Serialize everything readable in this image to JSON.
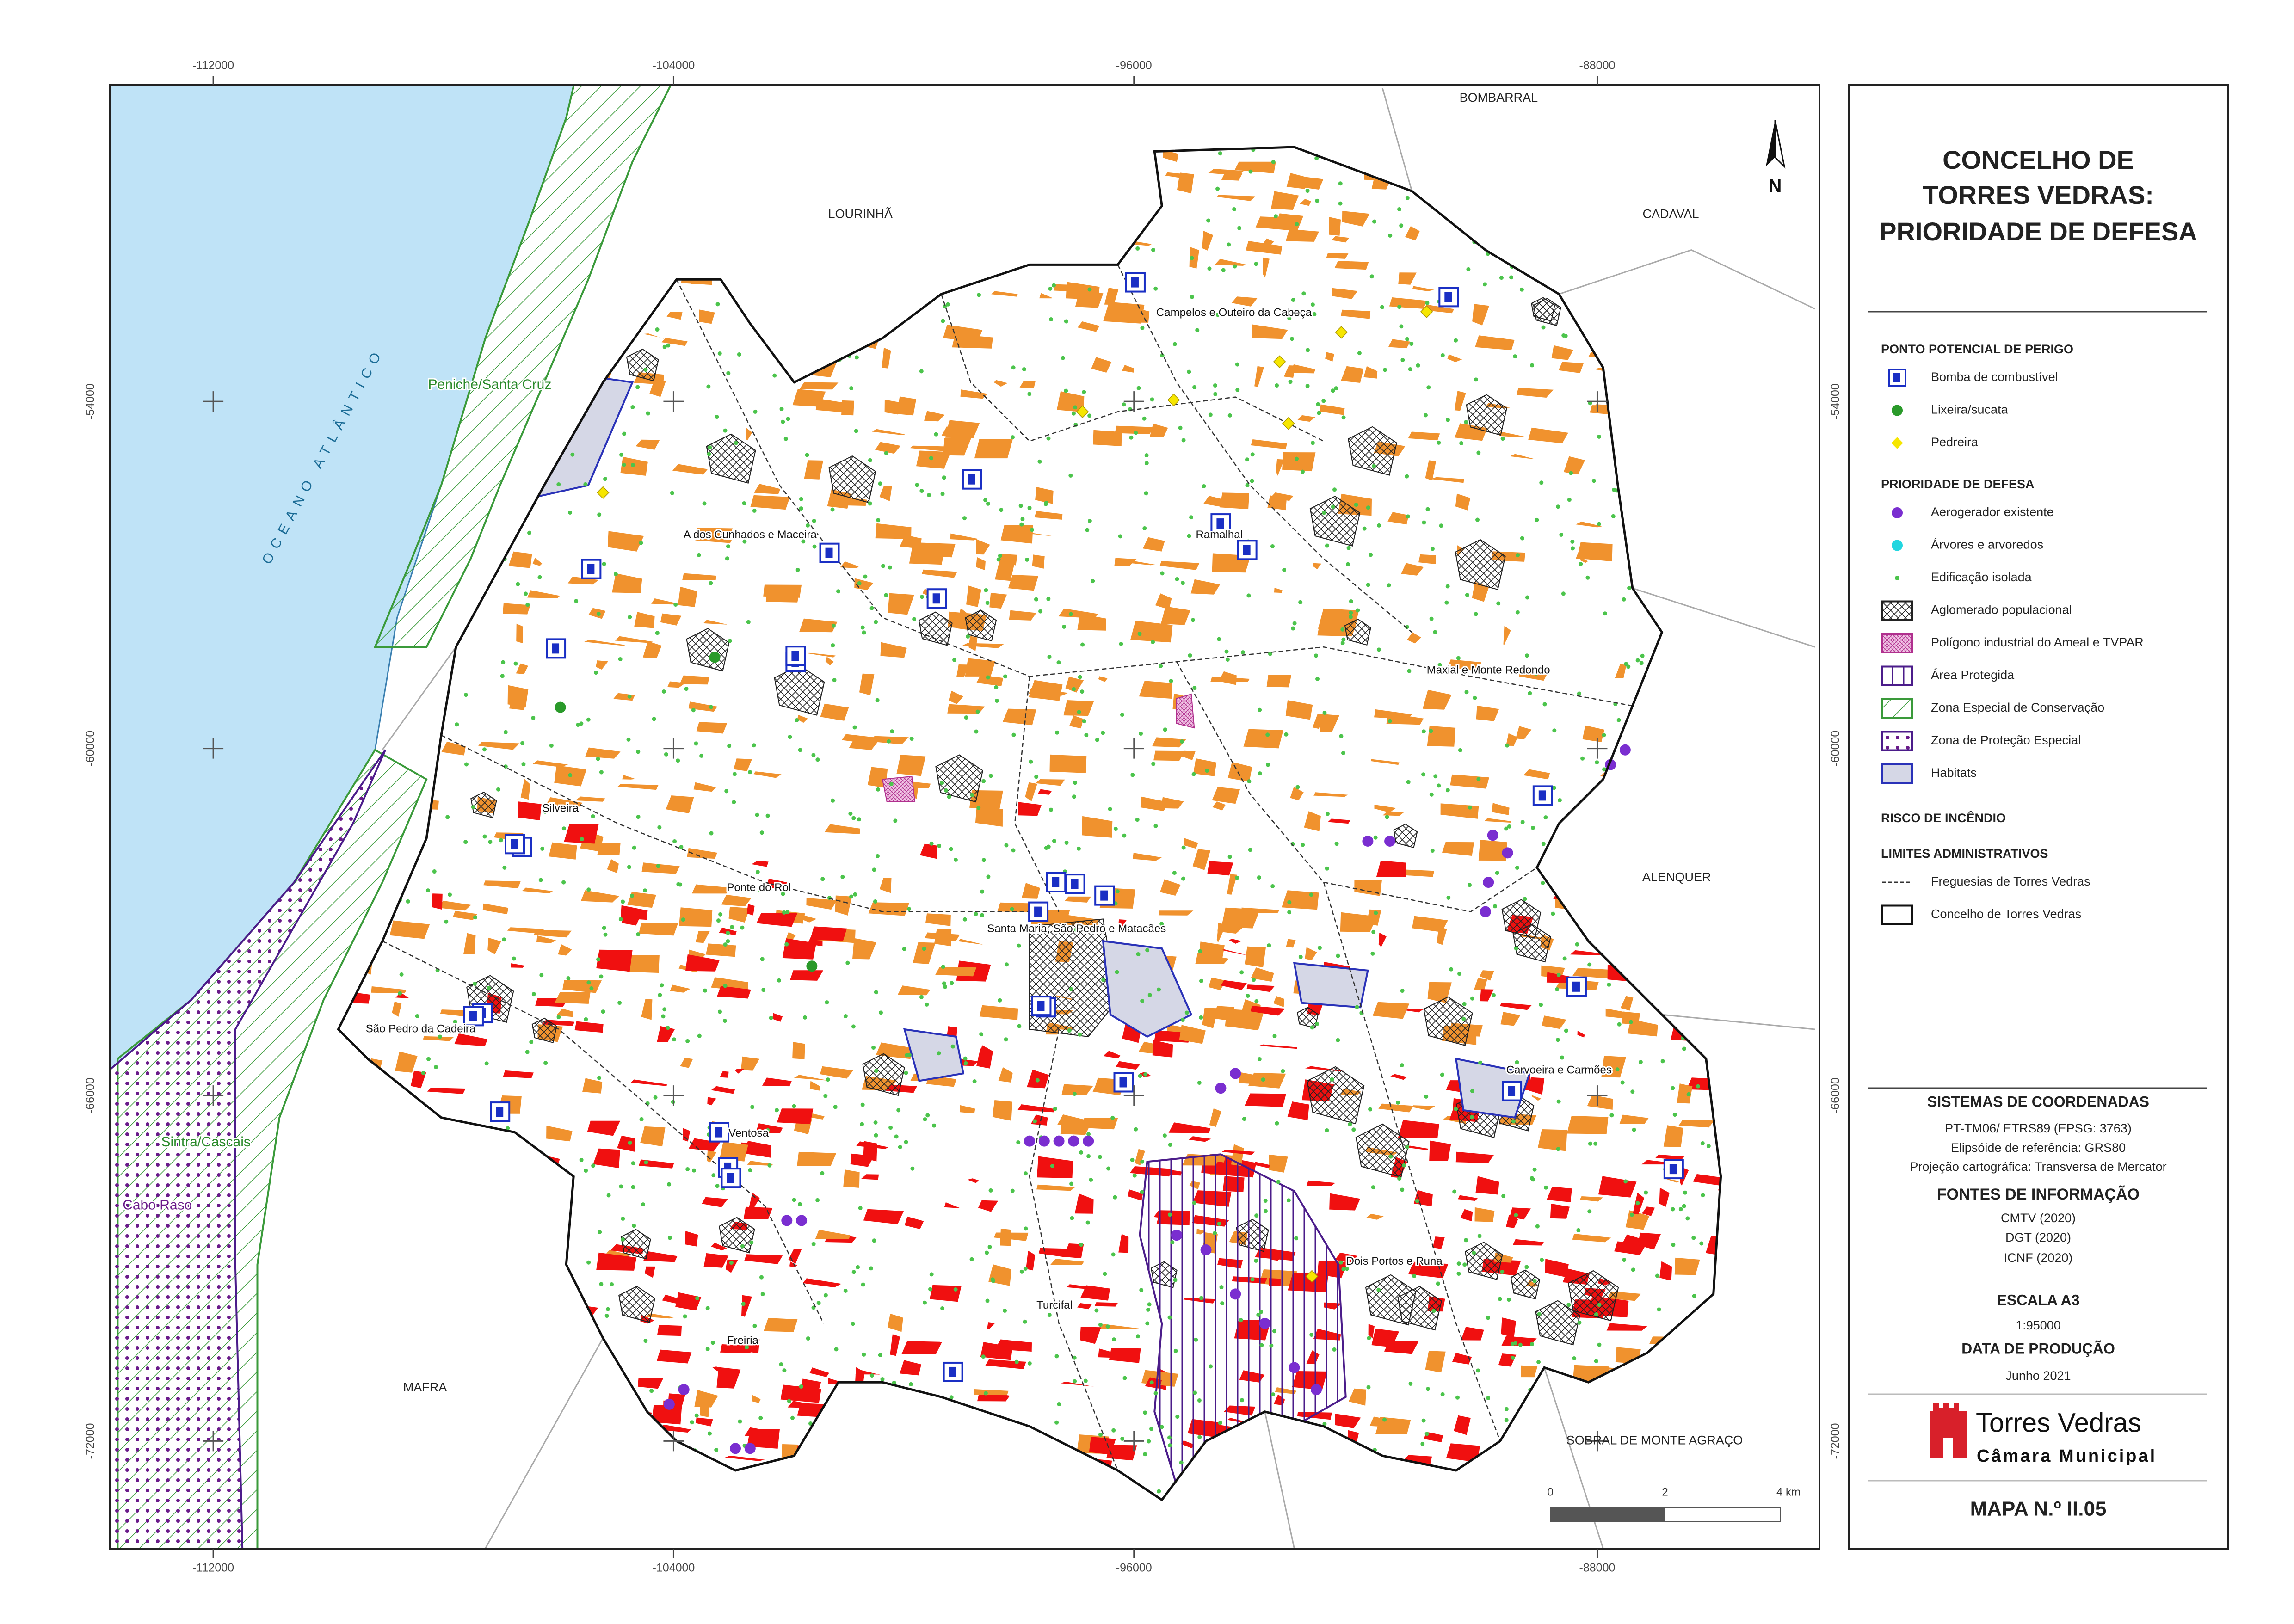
{
  "map": {
    "x_ticks": [
      "-112000",
      "-104000",
      "-96000",
      "-88000"
    ],
    "y_ticks": [
      "-54000",
      "-60000",
      "-66000",
      "-72000"
    ],
    "neighbors": [
      "BOMBARRAL",
      "LOURINHÃ",
      "CADAVAL",
      "ALENQUER",
      "MAFRA",
      "SOBRAL DE MONTE AGRAÇO"
    ],
    "sea": "OCEANO ATLÂNTICO",
    "sites": [
      "Peniche/Santa Cruz",
      "Sintra/Cascais",
      "Cabo Raso"
    ],
    "parishes": [
      "Campelos e Outeiro da Cabeça",
      "A dos Cunhados e Maceira",
      "Ramalhal",
      "Maxial e Monte Redondo",
      "Silveira",
      "Ponte do Rol",
      "Santa Maria, São Pedro e Matacães",
      "São Pedro da Cadeira",
      "Carvoeira e Carmões",
      "Ventosa",
      "Dois Portos e Runa",
      "Turcifal",
      "Freiria"
    ],
    "north": "N",
    "scale": [
      "0",
      "2",
      "4 km"
    ]
  },
  "legend": {
    "title": [
      "CONCELHO DE",
      "TORRES VEDRAS:",
      "PRIORIDADE DE DEFESA"
    ],
    "sections": [
      {
        "heading": "PONTO POTENCIAL DE PERIGO",
        "items": [
          "Bomba de combustível",
          "Lixeira/sucata",
          "Pedreira"
        ]
      },
      {
        "heading": "PRIORIDADE DE DEFESA",
        "items": [
          "Aerogerador existente",
          "Árvores e arvoredos",
          "Edificação isolada",
          "Aglomerado populacional",
          "Polígono industrial do Ameal e TVPAR",
          "Área Protegida",
          "Zona Especial de Conservação",
          "Zona de Proteção Especial",
          "Habitats"
        ]
      },
      {
        "heading": "RISCO DE INCÊNDIO",
        "items": []
      },
      {
        "heading": "LIMITES ADMINISTRATIVOS",
        "items": [
          "Freguesias de Torres Vedras",
          "Concelho de Torres Vedras"
        ]
      }
    ]
  },
  "info": {
    "coords_heading": "SISTEMAS DE COORDENADAS",
    "coords": [
      "PT-TM06/ ETRS89 (EPSG: 3763)",
      "Elipsóide de referência: GRS80",
      "Projeção cartográfica: Transversa de Mercator"
    ],
    "sources_heading": "FONTES DE INFORMAÇÃO",
    "sources": [
      "CMTV (2020)",
      "DGT (2020)",
      "ICNF (2020)"
    ],
    "scale_heading": "ESCALA A3",
    "scale": "1:95000",
    "date_heading": "DATA DE PRODUÇÃO",
    "date": "Junho 2021",
    "logo_name": "Torres Vedras",
    "logo_sub": "Câmara Municipal",
    "map_number": "MAPA N.º II.05"
  }
}
